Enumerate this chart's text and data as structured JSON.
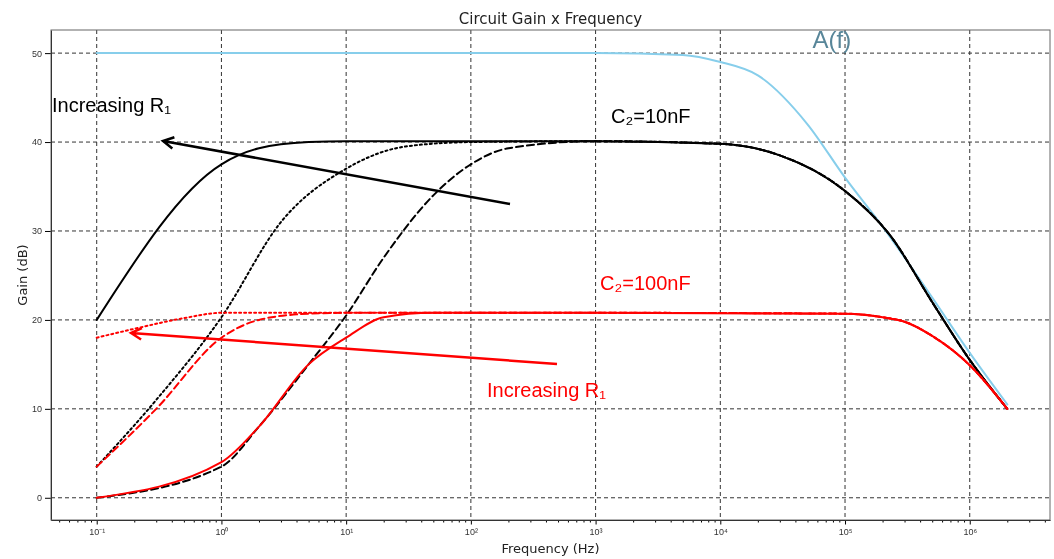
{
  "chart_data": {
    "type": "line",
    "title": "Circuit Gain x Frequency",
    "xlabel": "Frequency (Hz)",
    "ylabel": "Gain (dB)",
    "log": "x",
    "grid": true,
    "xlim": [
      0.043,
      4400000
    ],
    "ylim": [
      -2.5,
      52.6
    ],
    "xticks": [
      {
        "value": 0.05,
        "label": null
      },
      {
        "value": 0.06,
        "label": null
      },
      {
        "value": 0.07,
        "label": null
      },
      {
        "value": 0.08,
        "label": null
      },
      {
        "value": 0.09,
        "label": null
      },
      {
        "value": 0.1,
        "label": "10⁻¹"
      },
      {
        "value": 0.2,
        "label": null
      },
      {
        "value": 0.3,
        "label": null
      },
      {
        "value": 0.4,
        "label": null
      },
      {
        "value": 0.5,
        "label": null
      },
      {
        "value": 0.6,
        "label": null
      },
      {
        "value": 0.7,
        "label": null
      },
      {
        "value": 0.8,
        "label": null
      },
      {
        "value": 0.9,
        "label": null
      },
      {
        "value": 1,
        "label": "10⁰"
      },
      {
        "value": 2,
        "label": null
      },
      {
        "value": 3,
        "label": null
      },
      {
        "value": 4,
        "label": null
      },
      {
        "value": 5,
        "label": null
      },
      {
        "value": 6,
        "label": null
      },
      {
        "value": 7,
        "label": null
      },
      {
        "value": 8,
        "label": null
      },
      {
        "value": 9,
        "label": null
      },
      {
        "value": 10,
        "label": "10¹"
      },
      {
        "value": 20,
        "label": null
      },
      {
        "value": 30,
        "label": null
      },
      {
        "value": 40,
        "label": null
      },
      {
        "value": 50,
        "label": null
      },
      {
        "value": 60,
        "label": null
      },
      {
        "value": 70,
        "label": null
      },
      {
        "value": 80,
        "label": null
      },
      {
        "value": 90,
        "label": null
      },
      {
        "value": 100,
        "label": "10²"
      },
      {
        "value": 200,
        "label": null
      },
      {
        "value": 300,
        "label": null
      },
      {
        "value": 400,
        "label": null
      },
      {
        "value": 500,
        "label": null
      },
      {
        "value": 600,
        "label": null
      },
      {
        "value": 700,
        "label": null
      },
      {
        "value": 800,
        "label": null
      },
      {
        "value": 900,
        "label": null
      },
      {
        "value": 1000,
        "label": "10³"
      },
      {
        "value": 2000,
        "label": null
      },
      {
        "value": 3000,
        "label": null
      },
      {
        "value": 4000,
        "label": null
      },
      {
        "value": 5000,
        "label": null
      },
      {
        "value": 6000,
        "label": null
      },
      {
        "value": 7000,
        "label": null
      },
      {
        "value": 8000,
        "label": null
      },
      {
        "value": 9000,
        "label": null
      },
      {
        "value": 10000,
        "label": "10⁴"
      },
      {
        "value": 20000,
        "label": null
      },
      {
        "value": 30000,
        "label": null
      },
      {
        "value": 40000,
        "label": null
      },
      {
        "value": 50000,
        "label": null
      },
      {
        "value": 60000,
        "label": null
      },
      {
        "value": 70000,
        "label": null
      },
      {
        "value": 80000,
        "label": null
      },
      {
        "value": 90000,
        "label": null
      },
      {
        "value": 100000,
        "label": "10⁵"
      },
      {
        "value": 200000,
        "label": null
      },
      {
        "value": 300000,
        "label": null
      },
      {
        "value": 400000,
        "label": null
      },
      {
        "value": 500000,
        "label": null
      },
      {
        "value": 600000,
        "label": null
      },
      {
        "value": 700000,
        "label": null
      },
      {
        "value": 800000,
        "label": null
      },
      {
        "value": 900000,
        "label": null
      },
      {
        "value": 1000000,
        "label": "10⁶"
      },
      {
        "value": 2000000,
        "label": null
      },
      {
        "value": 3000000,
        "label": null
      },
      {
        "value": 4000000,
        "label": null
      }
    ],
    "yticks": [
      0,
      10,
      20,
      30,
      40,
      50
    ],
    "series": [
      {
        "name": "A(f)",
        "color": "#87ceeb",
        "line_style": "solid",
        "x": [
          0.1,
          1000,
          5000,
          10000,
          20000,
          50000,
          100000,
          200000,
          500000,
          1000000,
          2000000
        ],
        "values": [
          50,
          50,
          49.8,
          49,
          47.5,
          42,
          36,
          30.5,
          22.5,
          16.3,
          10.5
        ]
      },
      {
        "color": "#000000",
        "line_style": "solid",
        "x": [
          0.1,
          1,
          2,
          5,
          10,
          1000,
          10000,
          30000,
          100000,
          230000,
          500000,
          1000000,
          2000000
        ],
        "values": [
          20,
          37.5,
          39.3,
          40,
          40.1,
          40.1,
          39.8,
          38.5,
          34.5,
          29.5,
          22,
          15.5,
          10
        ]
      },
      {
        "color": "#000000",
        "line_style": "dotted",
        "x": [
          0.1,
          0.3,
          1,
          3,
          10,
          30,
          100,
          1000,
          10000,
          30000,
          100000,
          230000,
          500000,
          1000000,
          2000000
        ],
        "values": [
          3.5,
          11,
          20.3,
          31,
          37,
          39.5,
          40,
          40.1,
          39.8,
          38.5,
          34.5,
          29.5,
          22,
          15.5,
          10
        ]
      },
      {
        "color": "#000000",
        "line_style": "dashed",
        "x": [
          0.1,
          1,
          2,
          5,
          10,
          20,
          50,
          100,
          200,
          1000,
          10000,
          30000,
          100000,
          230000,
          500000,
          1000000,
          2000000
        ],
        "values": [
          0,
          3.5,
          8,
          15,
          20.5,
          27,
          34,
          37.5,
          39.3,
          40.1,
          39.8,
          38.5,
          34.5,
          29.5,
          22,
          15.5,
          10
        ]
      },
      {
        "color": "#ff0000",
        "line_style": "solid",
        "x": [
          0.1,
          1,
          2,
          5,
          10,
          20,
          50,
          1000,
          100000,
          200000,
          300000,
          500000,
          1000000,
          2000000
        ],
        "values": [
          0,
          4,
          8,
          15,
          18,
          20.3,
          20.8,
          20.8,
          20.7,
          20.3,
          19.8,
          18.2,
          14.9,
          10
        ]
      },
      {
        "color": "#ff0000",
        "line_style": "dotted",
        "x": [
          0.1,
          0.2,
          0.5,
          1,
          10,
          1000,
          100000,
          200000,
          300000,
          500000,
          1000000,
          2000000
        ],
        "values": [
          18,
          19,
          20.2,
          20.8,
          20.8,
          20.8,
          20.7,
          20.3,
          19.8,
          18.2,
          14.9,
          10
        ]
      },
      {
        "color": "#ff0000",
        "line_style": "dashed",
        "x": [
          0.1,
          0.3,
          1,
          2,
          5,
          10,
          1000,
          100000,
          200000,
          300000,
          500000,
          1000000,
          2000000
        ],
        "values": [
          3.5,
          10,
          18,
          20,
          20.7,
          20.8,
          20.8,
          20.7,
          20.3,
          19.8,
          18.2,
          14.9,
          10
        ]
      }
    ],
    "annotations": [
      "Increasing R₁",
      "C₂=10nF",
      "C₂=100nF",
      "Increasing R₁"
    ]
  }
}
